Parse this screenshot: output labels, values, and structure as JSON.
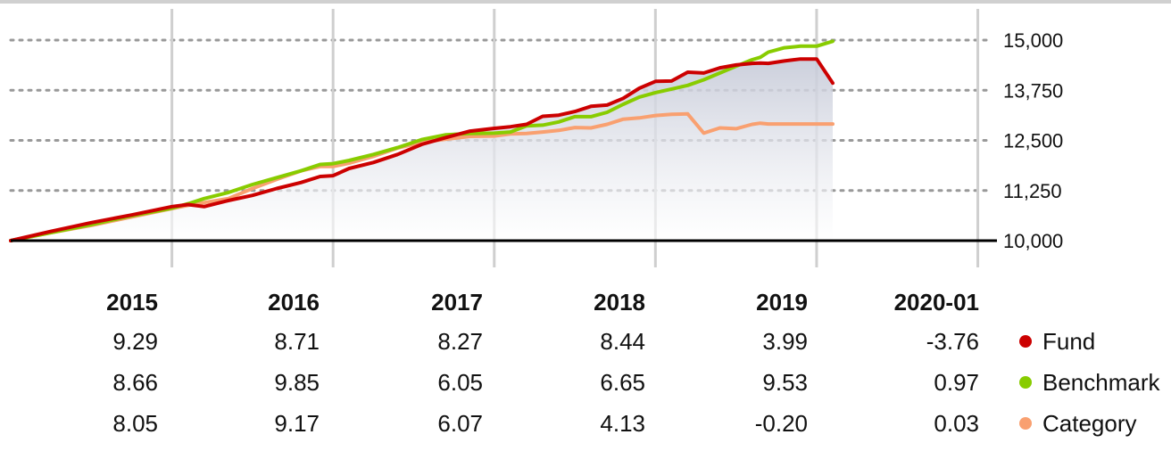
{
  "chart_data": {
    "type": "line",
    "title": "",
    "xlabel": "",
    "ylabel": "",
    "x_range": [
      2014.0,
      2020.08
    ],
    "ylim": [
      10000,
      15000
    ],
    "y_ticks": [
      "10,000",
      "11,250",
      "12,500",
      "13,750",
      "15,000"
    ],
    "y_tick_values": [
      10000,
      11250,
      12500,
      13750,
      15000
    ],
    "grid": true,
    "area_fill_under_series": "Fund",
    "x": [
      2014.0,
      2014.25,
      2014.5,
      2014.75,
      2015.0,
      2015.1,
      2015.2,
      2015.35,
      2015.5,
      2015.65,
      2015.8,
      2015.92,
      2016.0,
      2016.1,
      2016.25,
      2016.4,
      2016.55,
      2016.7,
      2016.85,
      2017.0,
      2017.1,
      2017.2,
      2017.3,
      2017.4,
      2017.5,
      2017.6,
      2017.7,
      2017.8,
      2017.9,
      2018.0,
      2018.1,
      2018.2,
      2018.3,
      2018.4,
      2018.5,
      2018.6,
      2018.65,
      2018.7,
      2018.8,
      2018.9,
      2019.0,
      2019.1
    ],
    "series": [
      {
        "name": "Fund",
        "color": "#cc0000",
        "values": [
          10000,
          10230,
          10450,
          10640,
          10850,
          10900,
          10850,
          11000,
          11130,
          11300,
          11450,
          11600,
          11620,
          11800,
          11950,
          12150,
          12400,
          12570,
          12730,
          12800,
          12840,
          12900,
          13100,
          13130,
          13220,
          13350,
          13380,
          13550,
          13800,
          13970,
          13980,
          14200,
          14180,
          14310,
          14380,
          14420,
          14430,
          14420,
          14480,
          14530,
          14530,
          13930
        ]
      },
      {
        "name": "Benchmark",
        "color": "#88cc00",
        "values": [
          10000,
          10200,
          10400,
          10620,
          10810,
          10920,
          11050,
          11200,
          11400,
          11570,
          11740,
          11900,
          11920,
          12000,
          12150,
          12320,
          12520,
          12640,
          12670,
          12680,
          12710,
          12860,
          12880,
          12960,
          13090,
          13090,
          13200,
          13400,
          13580,
          13690,
          13780,
          13870,
          14010,
          14180,
          14350,
          14510,
          14570,
          14700,
          14810,
          14850,
          14850,
          14970
        ]
      },
      {
        "name": "Category",
        "color": "#f9a070",
        "values": [
          10000,
          10200,
          10380,
          10590,
          10800,
          10880,
          10950,
          11050,
          11300,
          11530,
          11740,
          11850,
          11850,
          11930,
          12100,
          12310,
          12450,
          12530,
          12600,
          12610,
          12660,
          12670,
          12710,
          12750,
          12820,
          12810,
          12900,
          13030,
          13060,
          13120,
          13150,
          13160,
          12680,
          12810,
          12790,
          12900,
          12930,
          12910,
          12910,
          12910,
          12910,
          12910
        ]
      }
    ],
    "annual_table": {
      "columns": [
        "2015",
        "2016",
        "2017",
        "2018",
        "2019",
        "2020-01"
      ],
      "rows": [
        {
          "name": "Fund",
          "color": "#cc0000",
          "values": [
            "9.29",
            "8.71",
            "8.27",
            "8.44",
            "3.99",
            "-3.76"
          ]
        },
        {
          "name": "Benchmark",
          "color": "#88cc00",
          "values": [
            "8.66",
            "9.85",
            "6.05",
            "6.65",
            "9.53",
            "0.97"
          ]
        },
        {
          "name": "Category",
          "color": "#f9a070",
          "values": [
            "8.05",
            "9.17",
            "6.07",
            "4.13",
            "-0.20",
            "0.03"
          ]
        }
      ]
    }
  }
}
